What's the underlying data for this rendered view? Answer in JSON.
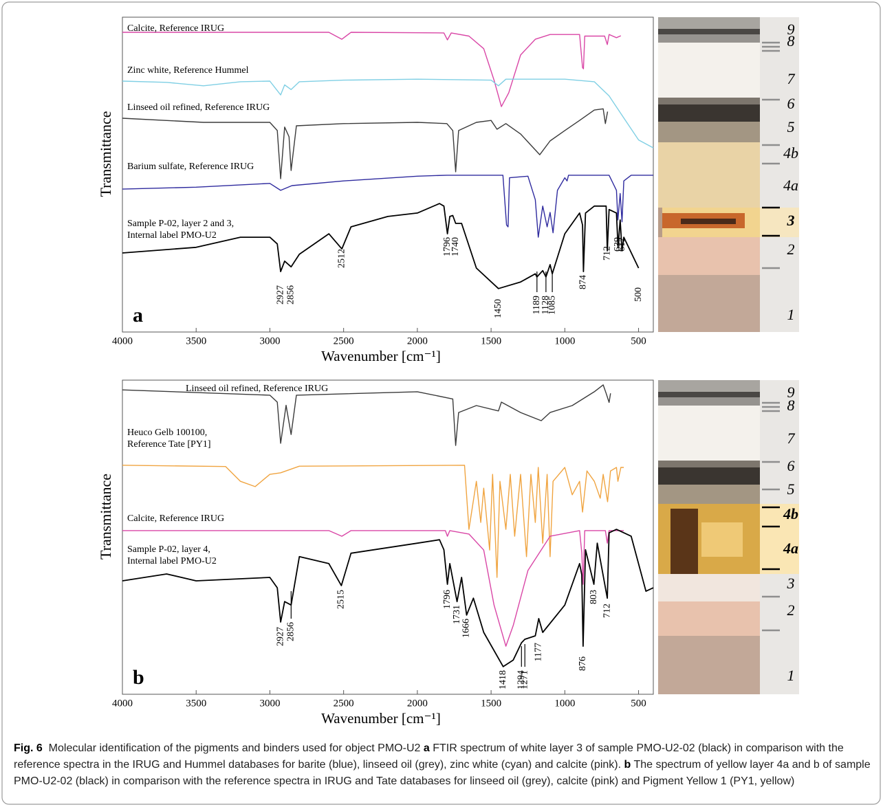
{
  "chart_data": [
    {
      "type": "line",
      "panel_label": "a",
      "xlabel": "Wavenumber [cm⁻¹]",
      "ylabel": "Transmittance",
      "xlim": [
        4000,
        400
      ],
      "xticks": [
        4000,
        3500,
        3000,
        2500,
        2000,
        1500,
        1000,
        500
      ],
      "ylim": [
        0,
        100
      ],
      "series": [
        {
          "name": "Calcite, Reference IRUG",
          "color": "#d946a6",
          "x": [
            4000,
            2600,
            2512,
            2450,
            1820,
            1796,
            1770,
            1650,
            1550,
            1480,
            1430,
            1380,
            1300,
            1200,
            1100,
            900,
            880,
            874,
            865,
            730,
            712,
            700,
            650,
            620
          ],
          "values": [
            95.2,
            95.2,
            93,
            95.2,
            95,
            92.8,
            95,
            94,
            90,
            80,
            71.6,
            76,
            88,
            93,
            94.5,
            94.5,
            84,
            83.6,
            94,
            94,
            91.3,
            94.5,
            93.5,
            94.1
          ]
        },
        {
          "name": "Zinc white, Reference Hummel",
          "color": "#7fcfe4",
          "x": [
            4000,
            3700,
            3450,
            3200,
            3000,
            2927,
            2900,
            2856,
            2800,
            2500,
            2000,
            1500,
            1450,
            1400,
            1000,
            800,
            700,
            600,
            500,
            400
          ],
          "values": [
            79.7,
            79.3,
            78.2,
            79.5,
            79.7,
            75.3,
            78.5,
            77,
            79.5,
            80,
            80.3,
            80,
            78.2,
            80.3,
            80.3,
            79.5,
            75,
            68,
            61,
            58.5
          ]
        },
        {
          "name": "Linseed oil refined, Reference IRUG",
          "color": "#3a3a3a",
          "x": [
            4000,
            3450,
            3000,
            2950,
            2927,
            2900,
            2870,
            2856,
            2820,
            2500,
            2000,
            1800,
            1760,
            1740,
            1720,
            1600,
            1500,
            1460,
            1400,
            1300,
            1170,
            1100,
            1000,
            900,
            800,
            740,
            725,
            710
          ],
          "values": [
            67.9,
            66.6,
            66.6,
            64,
            48.7,
            65.1,
            62,
            51.3,
            65.5,
            66.2,
            66.6,
            66.2,
            64,
            50.9,
            64,
            66.6,
            67.2,
            64.4,
            66.2,
            62.9,
            56.3,
            60.7,
            64,
            67.2,
            70.5,
            70.9,
            66.2,
            70
          ]
        },
        {
          "name": "Barium sulfate, Reference IRUG",
          "color": "#2e2a9e",
          "x": [
            4000,
            3500,
            3000,
            2927,
            2850,
            2500,
            2000,
            1800,
            1420,
            1395,
            1385,
            1375,
            1250,
            1200,
            1180,
            1150,
            1120,
            1100,
            1080,
            1050,
            1000,
            985,
            975,
            700,
            650,
            640,
            625,
            612,
            600,
            550,
            400
          ],
          "values": [
            45.4,
            46,
            47.2,
            45,
            46.5,
            48,
            49.5,
            49.8,
            49.8,
            34,
            33.4,
            49,
            49.5,
            42,
            30.1,
            40,
            33.4,
            38,
            31.5,
            45,
            49,
            48,
            49.8,
            49.8,
            45,
            35.6,
            44,
            35,
            48,
            49.8,
            49.8
          ]
        },
        {
          "name": [
            "Sample P-02, layer 2 and 3,",
            "Internal label PMO-U2"
          ],
          "color": "#000000",
          "x": [
            4000,
            3500,
            3200,
            3000,
            2950,
            2927,
            2900,
            2856,
            2800,
            2600,
            2512,
            2450,
            2200,
            2000,
            1850,
            1820,
            1796,
            1780,
            1760,
            1740,
            1700,
            1600,
            1450,
            1300,
            1200,
            1189,
            1150,
            1128,
            1100,
            1085,
            1000,
            900,
            880,
            874,
            860,
            800,
            720,
            712,
            700,
            650,
            639,
            625,
            612,
            600,
            500
          ],
          "values": [
            25.1,
            26.9,
            30.1,
            30.1,
            28,
            19.2,
            22.5,
            20.7,
            24.7,
            31.2,
            26.4,
            33.4,
            36.7,
            37.8,
            40.8,
            40,
            31.2,
            36.7,
            37,
            34.5,
            34.5,
            20.3,
            13.8,
            15.9,
            18.5,
            17.5,
            19.5,
            17.5,
            21.4,
            18.5,
            31.2,
            37.8,
            34,
            19.2,
            37.8,
            40,
            40,
            25.8,
            38.9,
            37.8,
            26.9,
            35.6,
            25.8,
            30.1,
            20.3
          ]
        }
      ],
      "peak_labels": [
        2927,
        2856,
        2512,
        1796,
        1740,
        1450,
        1189,
        1128,
        1085,
        874,
        712,
        639,
        612,
        500
      ]
    },
    {
      "type": "line",
      "panel_label": "b",
      "xlabel": "Wavenumber [cm⁻¹]",
      "ylabel": "Transmittance",
      "xlim": [
        4000,
        400
      ],
      "xticks": [
        4000,
        3500,
        3000,
        2500,
        2000,
        1500,
        1000,
        500
      ],
      "ylim": [
        0,
        100
      ],
      "series": [
        {
          "name": "Linseed oil refined, Reference IRUG",
          "color": "#3a3a3a",
          "x": [
            4000,
            3000,
            2950,
            2927,
            2890,
            2856,
            2820,
            2000,
            1760,
            1740,
            1720,
            1600,
            1450,
            1430,
            1300,
            1160,
            1100,
            950,
            800,
            740,
            720,
            700,
            690
          ],
          "values": [
            96.9,
            95.2,
            93,
            79.9,
            92,
            82.7,
            95.2,
            96.3,
            94,
            79.2,
            89.7,
            91.9,
            90.2,
            93,
            89.7,
            87.1,
            89.7,
            91.9,
            96.3,
            98.5,
            95.8,
            92.9,
            95.8
          ]
        },
        {
          "name": [
            "Heuco Gelb 100100,",
            "Reference Tate [PY1]"
          ],
          "color": "#f0a440",
          "x": [
            4000,
            3300,
            3200,
            3100,
            3000,
            2927,
            2800,
            1680,
            1650,
            1600,
            1570,
            1550,
            1510,
            1490,
            1460,
            1440,
            1400,
            1370,
            1340,
            1300,
            1260,
            1230,
            1200,
            1180,
            1150,
            1120,
            1100,
            1080,
            1000,
            950,
            900,
            880,
            850,
            800,
            760,
            740,
            710,
            690,
            650,
            640,
            620,
            600
          ],
          "values": [
            72.9,
            72.5,
            67.8,
            66.1,
            70,
            70.5,
            72.6,
            72.9,
            52.5,
            67.8,
            54.7,
            65.6,
            45.9,
            70,
            37.2,
            67.8,
            52.5,
            70,
            50.3,
            70,
            43.8,
            70,
            54.7,
            72.2,
            48.1,
            70,
            43.8,
            67.8,
            72.2,
            63.5,
            67.8,
            58,
            71.1,
            67.8,
            62.4,
            70,
            61.3,
            71.1,
            72.2,
            67.8,
            72.2,
            72.2
          ]
        },
        {
          "name": "Calcite, Reference IRUG",
          "color": "#d946a6",
          "x": [
            4000,
            2600,
            2512,
            2450,
            1810,
            1796,
            1780,
            1650,
            1550,
            1480,
            1400,
            1350,
            1250,
            1100,
            900,
            885,
            876,
            865,
            725,
            712,
            700,
            600
          ],
          "values": [
            52.1,
            52.1,
            50.3,
            52.1,
            52.1,
            50.3,
            52.1,
            51,
            45.9,
            28.4,
            15.3,
            21.9,
            39.4,
            50.3,
            52.1,
            45,
            35,
            52.1,
            52.1,
            48.1,
            52.1,
            52.1
          ]
        },
        {
          "name": [
            "Sample P-02, layer 4,",
            "Internal label PMO-U2"
          ],
          "color": "#000000",
          "x": [
            4000,
            3700,
            3500,
            3000,
            2950,
            2927,
            2900,
            2856,
            2800,
            2600,
            2515,
            2450,
            2000,
            1850,
            1820,
            1796,
            1780,
            1731,
            1700,
            1666,
            1620,
            1550,
            1418,
            1350,
            1294,
            1271,
            1200,
            1177,
            1150,
            1000,
            900,
            885,
            876,
            860,
            803,
            780,
            712,
            700,
            650,
            600,
            550,
            450,
            400
          ],
          "values": [
            36.1,
            38.3,
            36.1,
            37.2,
            33.9,
            23,
            29.5,
            28.4,
            43.8,
            41.6,
            34.6,
            44.9,
            48.1,
            49.2,
            46,
            35,
            41.6,
            29.5,
            37.2,
            25.2,
            30.6,
            19.7,
            8.8,
            10.9,
            16.4,
            17.5,
            18.6,
            24.1,
            19.7,
            28.4,
            41.6,
            38,
            15.3,
            46,
            35,
            48.1,
            30.6,
            51.4,
            52.5,
            51.4,
            50.3,
            32.8,
            33.9
          ]
        }
      ],
      "peak_labels": [
        2927,
        2856,
        2515,
        1796,
        1731,
        1666,
        1418,
        1294,
        1271,
        1177,
        876,
        803,
        712
      ]
    }
  ],
  "images": [
    {
      "layers": [
        "9",
        "8",
        "7",
        "6",
        "5",
        "4b",
        "4a",
        "3",
        "2",
        "1"
      ]
    },
    {
      "layers": [
        "9",
        "8",
        "7",
        "6",
        "5",
        "4b",
        "4a",
        "3",
        "2",
        "1"
      ]
    }
  ],
  "caption": [
    "Fig. 6",
    "Molecular identification of the pigments and binders used for object PMO-U2",
    "a",
    "FTIR spectrum of white layer 3 of sample PMO-U2-02 (black) in comparison with the reference spectra in the IRUG and Hummel databases for barite (blue), linseed oil (grey), zinc white (cyan) and calcite (pink).",
    "b",
    "The spectrum of yellow layer 4a and b of sample PMO-U2-02 (black) in comparison with the reference spectra in IRUG and Tate databases for linseed oil (grey), calcite (pink) and Pigment Yellow 1 (PY1, yellow)"
  ]
}
